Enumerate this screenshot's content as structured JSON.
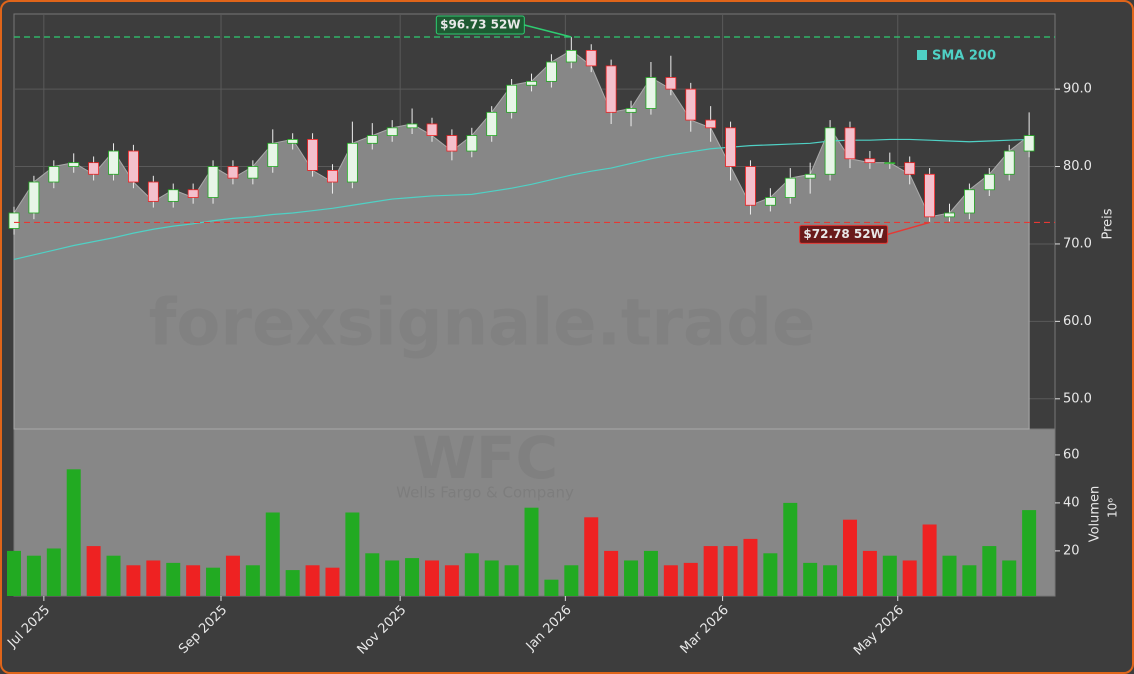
{
  "chart_data": [
    {
      "type": "candlestick",
      "watermark": "forexsignale.trade",
      "ticker": "WFC",
      "company": "Wells Fargo & Company",
      "ylabel": "Preis",
      "xlim": [
        0,
        52.3
      ],
      "ylim": [
        46.1,
        99.7
      ],
      "yticks": [
        {
          "value": 50,
          "label": "50.0"
        },
        {
          "value": 60,
          "label": "60.0"
        },
        {
          "value": 70,
          "label": "70.0"
        },
        {
          "value": 80,
          "label": "80.0"
        },
        {
          "value": 90,
          "label": "90.0"
        }
      ],
      "grid": true,
      "up_color": "#22aa22",
      "down_color": "#ee2222",
      "area_color": "#878787",
      "open": [
        72,
        74,
        78,
        80,
        80.5,
        79,
        82,
        78,
        75.5,
        77,
        76,
        80,
        78.5,
        80,
        83,
        83.5,
        79.5,
        78,
        83,
        84,
        85,
        85.5,
        84,
        82,
        84,
        87,
        90.5,
        91,
        93.5,
        95,
        93,
        87,
        87.5,
        91.5,
        90,
        86,
        85,
        80,
        75,
        76,
        78.5,
        79,
        85,
        81,
        80.5,
        80.5,
        79,
        73.5,
        74,
        77,
        79,
        82
      ],
      "high": [
        74.8,
        78.8,
        80.8,
        81.7,
        81.3,
        83,
        82.8,
        78.8,
        77.8,
        77.8,
        80.8,
        80.8,
        80.8,
        84.8,
        84.3,
        84.3,
        80.3,
        85.8,
        85.6,
        86,
        87.5,
        86.3,
        84.8,
        85,
        87.8,
        91.3,
        92,
        94.5,
        96.73,
        95.8,
        93.8,
        88.5,
        93.5,
        94.3,
        90.8,
        87.8,
        85.8,
        80.8,
        77.2,
        79.8,
        80.5,
        86,
        85.8,
        82,
        81.8,
        81.3,
        79.8,
        75.2,
        77.8,
        79.8,
        82.8,
        87
      ],
      "low": [
        71.2,
        73.2,
        77.2,
        79.2,
        78.2,
        78.2,
        77.2,
        74.7,
        74.7,
        75.2,
        75.2,
        77.7,
        77.7,
        79.2,
        82.2,
        78.7,
        76.5,
        77.2,
        82.2,
        83.2,
        84.2,
        83.2,
        80.8,
        81.2,
        83.2,
        86.2,
        89.7,
        90.2,
        92.7,
        92.2,
        85.5,
        85.2,
        86.7,
        89.2,
        84.5,
        83.2,
        78.2,
        73.8,
        74.2,
        75.2,
        76.5,
        78.2,
        79.8,
        79.7,
        79.7,
        77.7,
        72.78,
        72.9,
        73.2,
        76.2,
        78.2,
        81.2
      ],
      "close": [
        74,
        78,
        80,
        80.5,
        79,
        82,
        78,
        75.5,
        77,
        76,
        80,
        78.5,
        80,
        83,
        83.5,
        79.5,
        78,
        83,
        84,
        85,
        85.5,
        84,
        82,
        84,
        87,
        90.5,
        91,
        93.5,
        95,
        93,
        87,
        87.5,
        91.5,
        90,
        86,
        85,
        80,
        75,
        76,
        78.5,
        79,
        85,
        81,
        80.5,
        80.5,
        79,
        73.5,
        74,
        77,
        79,
        82,
        84
      ],
      "series": [
        {
          "name": "SMA 200",
          "color": "#4fd1c5",
          "values": [
            68,
            68.6,
            69.2,
            69.8,
            70.3,
            70.8,
            71.4,
            71.9,
            72.3,
            72.6,
            73,
            73.3,
            73.5,
            73.8,
            74,
            74.3,
            74.6,
            75,
            75.4,
            75.8,
            76,
            76.2,
            76.3,
            76.4,
            76.8,
            77.2,
            77.7,
            78.3,
            78.9,
            79.4,
            79.8,
            80.4,
            81,
            81.5,
            81.9,
            82.3,
            82.5,
            82.7,
            82.8,
            82.9,
            83,
            83.3,
            83.4,
            83.4,
            83.5,
            83.5,
            83.4,
            83.3,
            83.2,
            83.3,
            83.4,
            83.5
          ]
        }
      ],
      "legend": "upper right",
      "annotations": [
        {
          "value": 96.73,
          "label": "$96.73 52W",
          "color": "#2ecc71"
        },
        {
          "value": 72.78,
          "label": "$72.78 52W",
          "color": "#e53935"
        }
      ]
    },
    {
      "type": "bar",
      "ylabel": "Volumen",
      "yunit": "10⁶",
      "xlim": [
        0,
        52.3
      ],
      "ylim": [
        1.2,
        70.8
      ],
      "yticks": [
        20,
        40,
        60
      ],
      "xticks": [
        {
          "value": 1.5,
          "label": "Jul 2025"
        },
        {
          "value": 10.4,
          "label": "Sep 2025"
        },
        {
          "value": 19.4,
          "label": "Nov 2025"
        },
        {
          "value": 27.7,
          "label": "Jan 2026"
        },
        {
          "value": 35.6,
          "label": "Mar 2026"
        },
        {
          "value": 44.4,
          "label": "May 2026"
        }
      ],
      "values": [
        20,
        18,
        21,
        54,
        22,
        18,
        14,
        16,
        15,
        14,
        13,
        18,
        14,
        36,
        12,
        14,
        13,
        36,
        19,
        16,
        17,
        16,
        14,
        19,
        16,
        14,
        38,
        8,
        14,
        34,
        20,
        16,
        20,
        14,
        15,
        22,
        22,
        25,
        19,
        40,
        15,
        14,
        33,
        20,
        18,
        16,
        31,
        18,
        14,
        22,
        16,
        37
      ]
    }
  ]
}
